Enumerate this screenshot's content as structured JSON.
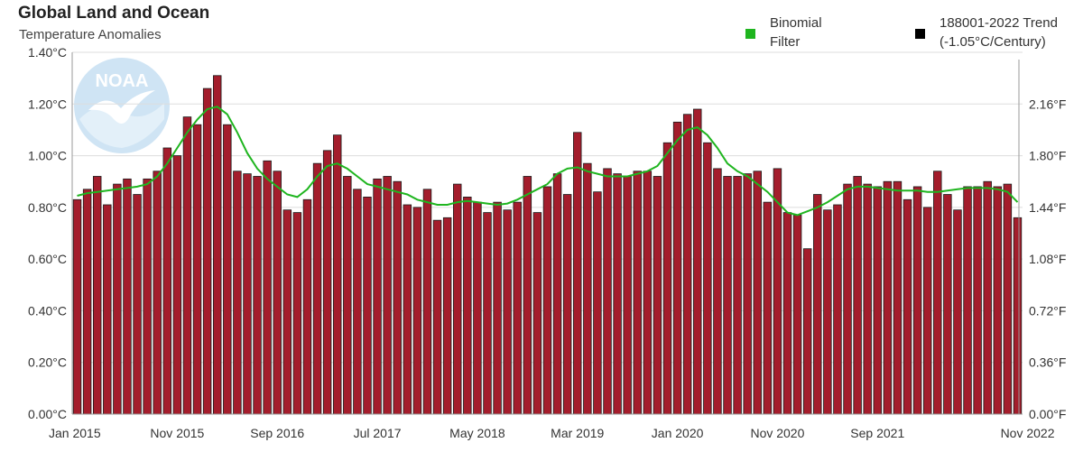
{
  "header": {
    "title": "Global Land and Ocean",
    "subtitle": "Temperature Anomalies"
  },
  "legend": {
    "binomial_label": "Binomial\nFilter",
    "binomial_color": "#1fb51f",
    "trend_label": "188001-2022 Trend\n(-1.05°C/Century)",
    "trend_color": "#000000"
  },
  "logo": {
    "text": "NOAA",
    "icon": "noaa-logo"
  },
  "chart_data": {
    "type": "bar",
    "bar_color": "#a41d2c",
    "line_color": "#1fb51f",
    "left_axis": {
      "min": 0,
      "max": 1.4,
      "ticks": [
        "0.00°C",
        "0.20°C",
        "0.40°C",
        "0.60°C",
        "0.80°C",
        "1.00°C",
        "1.20°C",
        "1.40°C"
      ]
    },
    "right_axis": {
      "ticks": [
        {
          "value": 0.0,
          "label": "0.00°F"
        },
        {
          "value": 0.2,
          "label": "0.36°F"
        },
        {
          "value": 0.4,
          "label": "0.72°F"
        },
        {
          "value": 0.6,
          "label": "1.08°F"
        },
        {
          "value": 0.8,
          "label": "1.44°F"
        },
        {
          "value": 1.0,
          "label": "1.80°F"
        },
        {
          "value": 1.2,
          "label": "2.16°F"
        }
      ]
    },
    "x_labels": [
      {
        "index": 0,
        "label": "Jan 2015"
      },
      {
        "index": 10,
        "label": "Nov 2015"
      },
      {
        "index": 20,
        "label": "Sep 2016"
      },
      {
        "index": 30,
        "label": "Jul 2017"
      },
      {
        "index": 40,
        "label": "May 2018"
      },
      {
        "index": 50,
        "label": "Mar 2019"
      },
      {
        "index": 60,
        "label": "Jan 2020"
      },
      {
        "index": 70,
        "label": "Nov 2020"
      },
      {
        "index": 80,
        "label": "Sep 2021"
      },
      {
        "index": 95,
        "label": "Nov 2022"
      }
    ],
    "values": [
      0.83,
      0.87,
      0.92,
      0.81,
      0.89,
      0.91,
      0.85,
      0.91,
      0.94,
      1.03,
      1.0,
      1.15,
      1.12,
      1.26,
      1.31,
      1.12,
      0.94,
      0.93,
      0.92,
      0.98,
      0.94,
      0.79,
      0.78,
      0.83,
      0.97,
      1.02,
      1.08,
      0.92,
      0.87,
      0.84,
      0.91,
      0.92,
      0.9,
      0.81,
      0.8,
      0.87,
      0.75,
      0.76,
      0.89,
      0.84,
      0.82,
      0.78,
      0.82,
      0.79,
      0.82,
      0.92,
      0.78,
      0.88,
      0.93,
      0.85,
      1.09,
      0.97,
      0.86,
      0.95,
      0.93,
      0.92,
      0.94,
      0.94,
      0.92,
      1.05,
      1.13,
      1.16,
      1.18,
      1.05,
      0.95,
      0.92,
      0.92,
      0.93,
      0.94,
      0.82,
      0.95,
      0.78,
      0.77,
      0.64,
      0.85,
      0.79,
      0.81,
      0.89,
      0.92,
      0.89,
      0.88,
      0.9,
      0.9,
      0.83,
      0.88,
      0.8,
      0.94,
      0.85,
      0.79,
      0.88,
      0.88,
      0.9,
      0.88,
      0.89,
      0.76
    ],
    "binomial_filter": [
      0.845,
      0.855,
      0.86,
      0.865,
      0.87,
      0.875,
      0.88,
      0.89,
      0.92,
      0.97,
      1.03,
      1.09,
      1.14,
      1.18,
      1.19,
      1.16,
      1.09,
      1.01,
      0.95,
      0.91,
      0.88,
      0.85,
      0.84,
      0.87,
      0.92,
      0.96,
      0.97,
      0.95,
      0.92,
      0.89,
      0.88,
      0.87,
      0.86,
      0.85,
      0.83,
      0.82,
      0.81,
      0.81,
      0.82,
      0.825,
      0.82,
      0.815,
      0.81,
      0.815,
      0.83,
      0.85,
      0.87,
      0.89,
      0.93,
      0.95,
      0.955,
      0.94,
      0.93,
      0.92,
      0.92,
      0.92,
      0.93,
      0.94,
      0.96,
      1.01,
      1.06,
      1.1,
      1.11,
      1.08,
      1.03,
      0.97,
      0.94,
      0.92,
      0.89,
      0.86,
      0.82,
      0.78,
      0.77,
      0.785,
      0.8,
      0.82,
      0.845,
      0.87,
      0.88,
      0.88,
      0.875,
      0.87,
      0.865,
      0.865,
      0.865,
      0.86,
      0.86,
      0.865,
      0.87,
      0.875,
      0.875,
      0.875,
      0.87,
      0.86,
      0.82
    ]
  }
}
